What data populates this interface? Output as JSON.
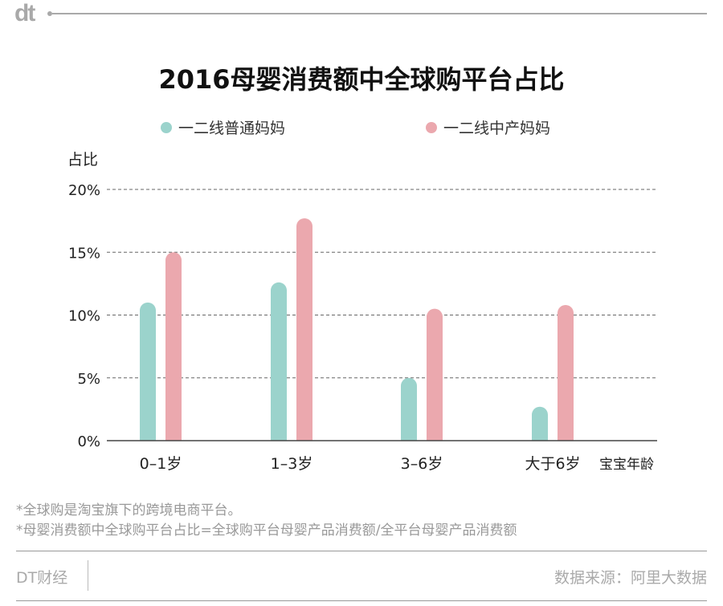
{
  "header": {
    "logo": "dt"
  },
  "chart_data": {
    "type": "bar",
    "title": "2016母婴消费额中全球购平台占比",
    "ylabel": "占比",
    "xlabel": "宝宝年龄",
    "categories": [
      "0–1岁",
      "1–3岁",
      "3–6岁",
      "大于6岁"
    ],
    "series": [
      {
        "name": "一二线普通妈妈",
        "color": "#9bd3cc",
        "values": [
          11.0,
          12.6,
          5.0,
          2.7
        ]
      },
      {
        "name": "一二线中产妈妈",
        "color": "#eba8ae",
        "values": [
          15.0,
          17.7,
          10.5,
          10.8
        ]
      }
    ],
    "ylim": [
      0,
      20
    ],
    "yticks": [
      "0%",
      "5%",
      "10%",
      "15%",
      "20%"
    ],
    "grid": true,
    "legend_position": "top"
  },
  "notes": [
    "*全球购是淘宝旗下的跨境电商平台。",
    "*母婴消费额中全球购平台占比=全球购平台母婴产品消费额/全平台母婴产品消费额"
  ],
  "footer": {
    "brand": "DT财经",
    "source": "数据来源：阿里大数据"
  }
}
